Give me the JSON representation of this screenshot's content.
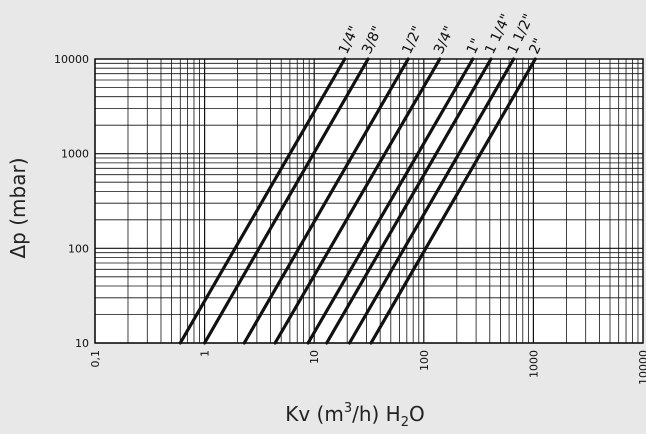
{
  "chart_data": {
    "type": "line",
    "title": "",
    "xlabel": "Kv (m3/h) H2O",
    "ylabel": "Δp (mbar)",
    "x_scale": "log",
    "y_scale": "log",
    "xlim": [
      0.1,
      10000
    ],
    "ylim": [
      10,
      10000
    ],
    "x_ticks": [
      "0,1",
      "1",
      "10",
      "100",
      "1000",
      "10000"
    ],
    "y_ticks": [
      "10",
      "100",
      "1000",
      "10000"
    ],
    "grid": true,
    "series": [
      {
        "name": "1/4\"",
        "x": [
          0.6,
          19
        ],
        "y": [
          10,
          10000
        ]
      },
      {
        "name": "3/8\"",
        "x": [
          1,
          31
        ],
        "y": [
          10,
          10000
        ]
      },
      {
        "name": "1/2\"",
        "x": [
          2.3,
          72
        ],
        "y": [
          10,
          10000
        ]
      },
      {
        "name": "3/4\"",
        "x": [
          4.4,
          140
        ],
        "y": [
          10,
          10000
        ]
      },
      {
        "name": "1\"",
        "x": [
          8.8,
          280
        ],
        "y": [
          10,
          10000
        ]
      },
      {
        "name": "1 1/4\"",
        "x": [
          13,
          410
        ],
        "y": [
          10,
          10000
        ]
      },
      {
        "name": "1 1/2\"",
        "x": [
          21,
          660
        ],
        "y": [
          10,
          10000
        ]
      },
      {
        "name": "2\"",
        "x": [
          33,
          1040
        ],
        "y": [
          10,
          10000
        ]
      }
    ]
  }
}
